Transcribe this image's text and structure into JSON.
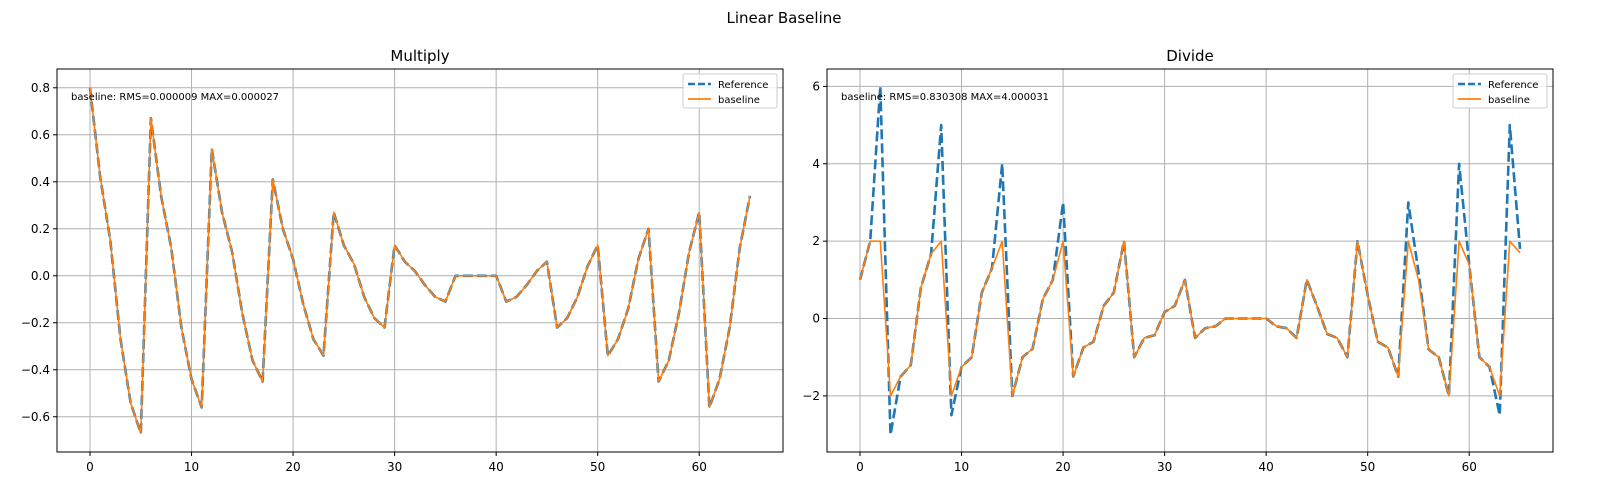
{
  "figure": {
    "title": "Linear Baseline"
  },
  "colors": {
    "reference": "#1f77b4",
    "baseline": "#ff7f0e",
    "grid": "#b0b0b0"
  },
  "chart_data": [
    {
      "type": "line",
      "title": "Multiply",
      "annotation": "baseline: RMS=0.000009 MAX=0.000027",
      "xlim": [
        -3.25,
        68.25
      ],
      "ylim": [
        -0.75,
        0.88
      ],
      "xticks": [
        0,
        10,
        20,
        30,
        40,
        50,
        60
      ],
      "yticks": [
        -0.6,
        -0.4,
        -0.2,
        0.0,
        0.2,
        0.4,
        0.6,
        0.8
      ],
      "ytick_labels": [
        "−0.6",
        "−0.4",
        "−0.2",
        "0.0",
        "0.2",
        "0.4",
        "0.6",
        "0.8"
      ],
      "grid": true,
      "legend": "top-right",
      "series": [
        {
          "name": "Reference",
          "style": "dashed",
          "values": [
            0.8,
            0.42,
            0.15,
            -0.27,
            -0.54,
            -0.67,
            0.67,
            0.34,
            0.12,
            -0.22,
            -0.44,
            -0.56,
            0.54,
            0.27,
            0.1,
            -0.16,
            -0.36,
            -0.45,
            0.41,
            0.2,
            0.07,
            -0.12,
            -0.27,
            -0.34,
            0.27,
            0.13,
            0.05,
            -0.09,
            -0.18,
            -0.22,
            0.13,
            0.06,
            0.02,
            -0.04,
            -0.09,
            -0.11,
            0.0,
            0.0,
            0.0,
            0.0,
            0.0,
            -0.11,
            -0.09,
            -0.04,
            0.02,
            0.06,
            -0.22,
            -0.18,
            -0.09,
            0.04,
            0.13,
            -0.34,
            -0.27,
            -0.14,
            0.07,
            0.2,
            -0.45,
            -0.36,
            -0.16,
            0.1,
            0.27,
            -0.56,
            -0.44,
            -0.22,
            0.12,
            0.34
          ]
        },
        {
          "name": "baseline",
          "style": "solid",
          "values": [
            0.8,
            0.42,
            0.15,
            -0.27,
            -0.54,
            -0.67,
            0.67,
            0.34,
            0.12,
            -0.22,
            -0.44,
            -0.56,
            0.54,
            0.27,
            0.1,
            -0.16,
            -0.36,
            -0.45,
            0.41,
            0.2,
            0.07,
            -0.12,
            -0.27,
            -0.34,
            0.27,
            0.13,
            0.05,
            -0.09,
            -0.18,
            -0.22,
            0.13,
            0.06,
            0.02,
            -0.04,
            -0.09,
            -0.11,
            0.0,
            0.0,
            0.0,
            0.0,
            0.0,
            -0.11,
            -0.09,
            -0.04,
            0.02,
            0.06,
            -0.22,
            -0.18,
            -0.09,
            0.04,
            0.13,
            -0.34,
            -0.27,
            -0.14,
            0.07,
            0.2,
            -0.45,
            -0.36,
            -0.16,
            0.1,
            0.27,
            -0.56,
            -0.44,
            -0.22,
            0.12,
            0.34
          ]
        }
      ]
    },
    {
      "type": "line",
      "title": "Divide",
      "annotation": "baseline: RMS=0.830308 MAX=4.000031",
      "xlim": [
        -3.25,
        68.25
      ],
      "ylim": [
        -3.45,
        6.45
      ],
      "xticks": [
        0,
        10,
        20,
        30,
        40,
        50,
        60
      ],
      "yticks": [
        -2,
        0,
        2,
        4,
        6
      ],
      "ytick_labels": [
        "−2",
        "0",
        "2",
        "4",
        "6"
      ],
      "grid": true,
      "legend": "top-right",
      "series": [
        {
          "name": "Reference",
          "style": "dashed",
          "values": [
            1,
            2,
            6,
            -3,
            -1.5,
            -1.2,
            0.8,
            1.67,
            5,
            -2.5,
            -1.25,
            -1,
            0.67,
            1.3,
            4,
            -2,
            -1,
            -0.78,
            0.5,
            1,
            3,
            -1.5,
            -0.75,
            -0.6,
            0.33,
            0.67,
            2,
            -1,
            -0.5,
            -0.43,
            0.17,
            0.33,
            1,
            -0.5,
            -0.25,
            -0.2,
            0,
            0,
            0,
            0,
            0,
            -0.2,
            -0.25,
            -0.5,
            1,
            0.33,
            -0.4,
            -0.5,
            -1,
            2,
            0.6,
            -0.6,
            -0.75,
            -1.5,
            3,
            1.2,
            -0.8,
            -1,
            -2,
            4,
            1.4,
            -1,
            -1.25,
            -2.5,
            5,
            1.8
          ]
        },
        {
          "name": "baseline",
          "style": "solid",
          "values": [
            1,
            2,
            2,
            -2,
            -1.5,
            -1.2,
            0.8,
            1.67,
            2,
            -2,
            -1.25,
            -1,
            0.67,
            1.3,
            2,
            -2,
            -1,
            -0.78,
            0.5,
            1,
            2,
            -1.5,
            -0.75,
            -0.6,
            0.33,
            0.67,
            2,
            -1,
            -0.5,
            -0.43,
            0.17,
            0.33,
            1,
            -0.5,
            -0.25,
            -0.2,
            0,
            0,
            0,
            0,
            0,
            -0.2,
            -0.25,
            -0.5,
            1,
            0.33,
            -0.4,
            -0.5,
            -1,
            2,
            0.6,
            -0.6,
            -0.75,
            -1.5,
            2,
            1,
            -0.8,
            -1,
            -2,
            2,
            1.4,
            -1,
            -1.25,
            -2,
            2,
            1.7
          ]
        }
      ]
    }
  ]
}
